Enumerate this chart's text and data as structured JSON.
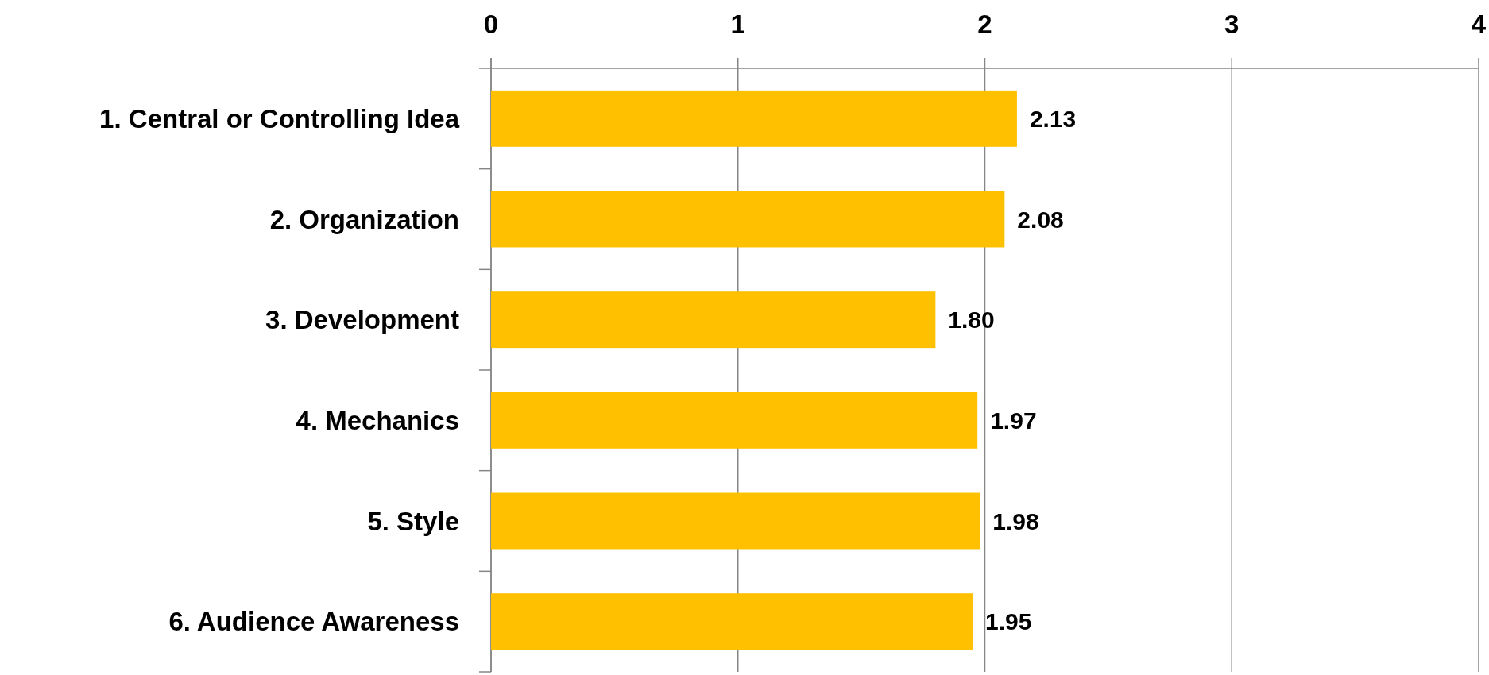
{
  "chart_data": {
    "type": "bar",
    "orientation": "horizontal",
    "categories": [
      "1. Central or Controlling Idea",
      "2. Organization",
      "3. Development",
      "4. Mechanics",
      "5. Style",
      "6. Audience Awareness"
    ],
    "values": [
      2.13,
      2.08,
      1.8,
      1.97,
      1.98,
      1.95
    ],
    "value_labels": [
      "2.13",
      "2.08",
      "1.80",
      "1.97",
      "1.98",
      "1.95"
    ],
    "color": "#ffc000",
    "xlim": [
      0,
      4
    ],
    "xticks": [
      0,
      1,
      2,
      3,
      4
    ],
    "grid": "x"
  }
}
